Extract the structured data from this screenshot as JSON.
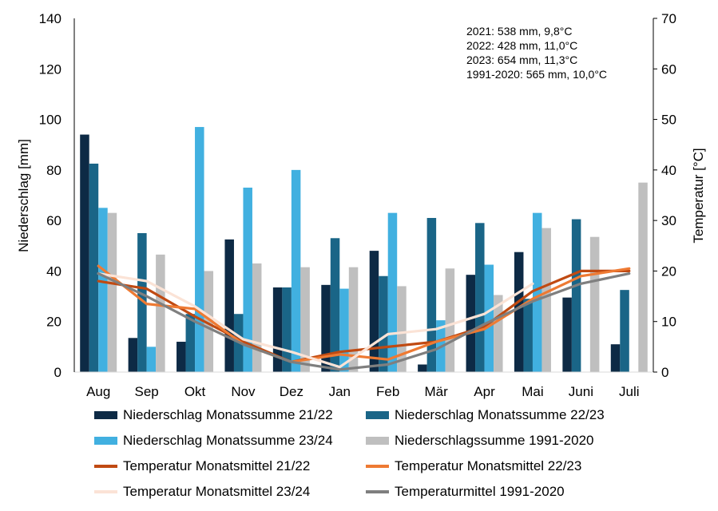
{
  "chart_data": {
    "type": "bar+line",
    "categories": [
      "Aug",
      "Sep",
      "Okt",
      "Nov",
      "Dez",
      "Jan",
      "Feb",
      "Mär",
      "Apr",
      "Mai",
      "Juni",
      "Juli"
    ],
    "y_left": {
      "label": "Niederschlag [mm]",
      "ylim": [
        0,
        140
      ],
      "ticks": [
        0,
        20,
        40,
        60,
        80,
        100,
        120,
        140
      ]
    },
    "y_right": {
      "label": "Temperatur [°C]",
      "ylim": [
        0,
        70
      ],
      "ticks": [
        0,
        10,
        20,
        30,
        40,
        50,
        60,
        70
      ]
    },
    "bar_series": [
      {
        "name": "Niederschlag Monatssumme 21/22",
        "color": "#0d2a45",
        "values": [
          94,
          13.5,
          12,
          52.5,
          33.5,
          34.5,
          48,
          3,
          38.5,
          47.5,
          29.5,
          11
        ]
      },
      {
        "name": "Niederschlag Monatssumme 22/23",
        "color": "#1a6587",
        "values": [
          82.5,
          55,
          23,
          23,
          33.5,
          53,
          38,
          61,
          59,
          29,
          60.5,
          32.5
        ]
      },
      {
        "name": "Niederschlag Monatssumme 23/24",
        "color": "#41b0e0",
        "values": [
          65,
          10,
          97,
          73,
          80,
          33,
          63,
          20.5,
          42.5,
          63,
          null,
          null
        ]
      },
      {
        "name": "Niederschlagssumme 1991-2020",
        "color": "#bfbfbf",
        "values": [
          63,
          46.5,
          40,
          43,
          41.5,
          41.5,
          34,
          41,
          30.5,
          57,
          53.5,
          75
        ]
      }
    ],
    "line_series": [
      {
        "name": "Temperatur Monatsmittel 21/22",
        "color": "#c04a12",
        "values": [
          18,
          16.5,
          11,
          6,
          2,
          4,
          5,
          6,
          9,
          16,
          20,
          20
        ]
      },
      {
        "name": "Temperatur Monatsmittel 22/23",
        "color": "#ee7a33",
        "values": [
          21,
          13.5,
          12.5,
          5.5,
          2,
          3.5,
          2.5,
          6,
          8.5,
          14.5,
          19,
          20.5
        ]
      },
      {
        "name": "Temperatur Monatsmittel 23/24",
        "color": "#fbe3d6",
        "values": [
          19.5,
          18,
          13,
          6.5,
          4,
          1,
          7.5,
          8.5,
          11.5,
          17.5,
          null,
          null
        ]
      },
      {
        "name": "Temperaturmittel 1991-2020",
        "color": "#7f7f7f",
        "values": [
          19.5,
          15,
          10,
          5.5,
          2,
          0.5,
          1.5,
          4.5,
          9.5,
          14,
          17.5,
          19.5
        ]
      }
    ],
    "annotations": [
      "2021: 538 mm, 9,8°C",
      "2022: 428 mm, 11,0°C",
      "2023: 654 mm, 11,3°C",
      "1991-2020: 565 mm, 10,0°C"
    ],
    "legend": "bottom"
  }
}
